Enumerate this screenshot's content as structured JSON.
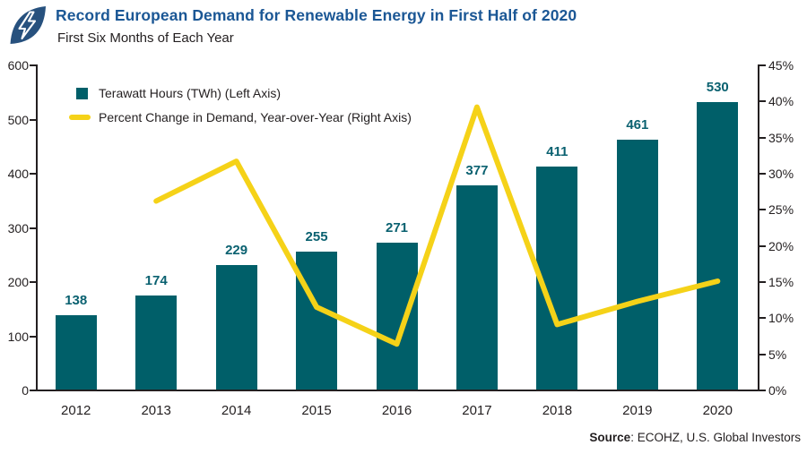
{
  "header": {
    "title": "Record European Demand for Renewable Energy in First Half of 2020",
    "subtitle": "First Six Months of Each Year",
    "logo": "lightning-bolt-leaf-logo"
  },
  "legend": {
    "bars_label": "Terawatt Hours (TWh) (Left Axis)",
    "line_label": "Percent Change in Demand, Year-over-Year (Right Axis)"
  },
  "source": {
    "prefix": "Source",
    "rest": ": ECOHZ, U.S. Global Investors"
  },
  "colors": {
    "bar_teal": "#005f69",
    "label_teal": "#0a6170",
    "line_yellow": "#f5d218",
    "title_blue": "#1b5795",
    "logo_navy": "#27517e",
    "axis_black": "#231f20"
  },
  "chart_data": {
    "type": "bar+line combo",
    "categories": [
      "2012",
      "2013",
      "2014",
      "2015",
      "2016",
      "2017",
      "2018",
      "2019",
      "2020"
    ],
    "series": [
      {
        "name": "Terawatt Hours (TWh)",
        "type": "bar",
        "axis": "left",
        "values": [
          138,
          174,
          229,
          255,
          271,
          377,
          411,
          461,
          530
        ],
        "data_labels": [
          "138",
          "174",
          "229",
          "255",
          "271",
          "377",
          "411",
          "461",
          "530"
        ]
      },
      {
        "name": "Percent Change in Demand, Year-over-Year",
        "type": "line",
        "axis": "right",
        "values": [
          null,
          26.1,
          31.6,
          11.4,
          6.3,
          39.1,
          9.0,
          12.2,
          15.0
        ]
      }
    ],
    "left_axis": {
      "min": 0,
      "max": 600,
      "step": 100,
      "ticks": [
        "600",
        "500",
        "400",
        "300",
        "200",
        "100",
        "0"
      ]
    },
    "right_axis": {
      "min": 0,
      "max": 45,
      "step": 5,
      "ticks": [
        "45%",
        "40%",
        "35%",
        "30%",
        "25%",
        "20%",
        "15%",
        "10%",
        "5%",
        "0%"
      ]
    },
    "grid": "off",
    "legend_position": "top-left inside plot"
  }
}
